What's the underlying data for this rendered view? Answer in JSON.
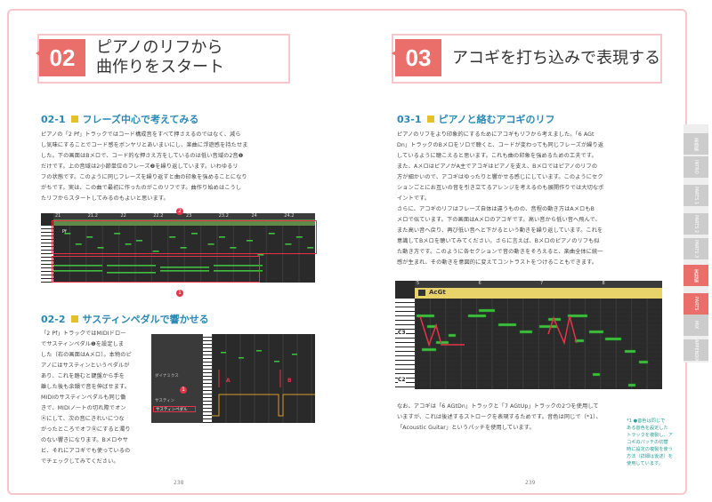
{
  "left": {
    "chapter_num": "02",
    "chapter_title_1": "ピアノのリフから",
    "chapter_title_2": "曲作りをスタート",
    "s1_title": "02-1",
    "s1_sub": "フレーズ中心で考えてみる",
    "s1_body": [
      "ピアノの「2 Pf」トラックではコード構成音をすべて押さえるのではなく、減ら",
      "し気味にすることでコード感をボンヤリとあいまいにし、楽曲に浮遊感を持たせま",
      "した。下の画面はBメロで、コード的な押さえ方をしているのは低い音域の2音❶",
      "だけです。上の音域は2小節単位のフレーズ❷を繰り返しています。いわゆるリ",
      "フの状態です。このように同じフレーズを繰り返すと曲の印象を強めることになり",
      "がちです。実は、この曲で最初に作ったのがこのリフです。曲作り始めはこうし",
      "たリフからスタートしてみるのもよいと思います。"
    ],
    "piano_track": "Pf",
    "piano_ruler": [
      "21",
      "21.2",
      "22",
      "22.2",
      "23",
      "23.2",
      "24",
      "24.2"
    ],
    "callout_1": "1",
    "callout_2": "2",
    "s2_title": "02-2",
    "s2_sub": "サスティンペダルで響かせる",
    "s2_body": [
      "「2 Pf」トラックではMIDIドロー",
      "でサスティンペダル❶を設定しま",
      "した（右の画面はAメロ）。本物のピ",
      "アノにはサスティンというペダルが",
      "あり、これを踏むと鍵盤から手を",
      "離した後も余韻で音を伸ばせます。",
      "MIDIのサスティンペダルも同じ働",
      "きで、MIDIノートの切れ際でオン",
      "Ⓐにして、次の音にきれいにつな",
      "がったところでオフⒷにすると濁り",
      "のない響きになります。Bメロやサ",
      "ビ、それにアコギでも使っているの",
      "でチェックしてみてください。"
    ],
    "sustain_label": "サスティンペダル",
    "sustain_panel_items": [
      "ダイナミクス",
      "サスティン"
    ],
    "sustain_a": "A",
    "sustain_b": "B",
    "page_num": "238"
  },
  "right": {
    "chapter_num": "03",
    "chapter_title": "アコギを打ち込みで表現する",
    "s1_title": "03-1",
    "s1_sub": "ピアノと絡むアコギのリフ",
    "s1_body": [
      "ピアノのリフをより印象的にするためにアコギもリフから考えました。「6 AGt",
      "Dn」トラックのBメロをソロで聴くと、コードが変わっても同じフレーズが繰り返",
      "しているように聴こえると思います。これも曲の印象を強めるための工夫です。",
      "また、AメロはピアノがA主でアコギはピアノを支え、Bメロではピアノのリフの",
      "方が細かいので、アコギはゆったりと響かせる感じにしています。このようにセク",
      "ションごとにお互いの音を引き立てるアレンジを考えるのも展開作りでは大切なポ",
      "イントです。",
      "さらに、アコギのリフはフレーズ自体は違うものの、音程の動き方はAメロもB",
      "メロで似ています。下の画面はAメロのアコギです。高い音から低い音へ飛んで、",
      "また高い音へ戻り、再び低い音へと下がるという動きを繰り返しています。これを",
      "意識してBメロを聴いてみてください。さらに言えば、Bメロのピアノのリフも似",
      "た動き方です。このように各セクションで音の動きをそろえると、楽曲全体に統一",
      "感が生まれ、その動きを意図的に変えてコントラストをつけることもできます。"
    ],
    "guitar_track": "AcGt",
    "guitar_ruler": [
      "5",
      "6",
      "7",
      "8"
    ],
    "c3_label": "C3",
    "c2_label": "C2",
    "s1_body2": [
      "なお、アコギは「6 AGtDn」トラックと「7 AGtUp」トラックの2つを使用して",
      "いますが、これは後述するストロークを表現するためです。音色は同じで（*1）、",
      "「Acoustic Guitar」というパッチを使用しています。"
    ],
    "sidenote": [
      "*1 ●音色は同じで",
      "ある音色を設定した",
      "トラックを複製し、ア",
      "コギのパッチの切替",
      "時に設定の複製を使う",
      "方法（詳細は後述）を",
      "使用しています。"
    ],
    "page_num": "239"
  },
  "tabs": [
    "楽曲編",
    "INTRO",
    "PARTS 1",
    "PARTS 2",
    "PARTS 3",
    "実践編",
    "PARTS",
    "MIX",
    "APPENDIX"
  ],
  "colors": {
    "accent": "#ea6e6a",
    "frame": "#f6c6cc",
    "section": "#2a89b4",
    "red": "#e5344a",
    "note": "#40c040"
  }
}
